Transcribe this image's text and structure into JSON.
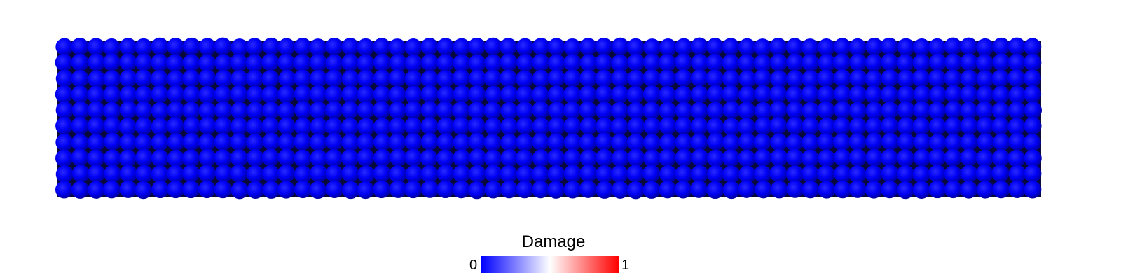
{
  "figure": {
    "particle_grid": {
      "columns": 62,
      "rows": 10,
      "damage_value": 0,
      "particle_color": "#0000ff"
    },
    "colorbar": {
      "title": "Damage",
      "min_label": "0",
      "max_label": "1",
      "colors": [
        "#0000ff",
        "#ffffff",
        "#ff0000"
      ]
    }
  }
}
